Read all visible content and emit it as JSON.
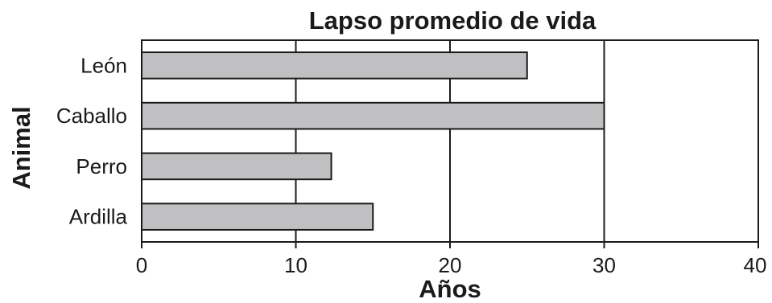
{
  "chart_data": {
    "type": "bar",
    "orientation": "horizontal",
    "title": "Lapso promedio de vida",
    "xlabel": "Años",
    "ylabel": "Animal",
    "categories": [
      "León",
      "Caballo",
      "Perro",
      "Ardilla"
    ],
    "values": [
      25,
      30,
      12.3,
      15
    ],
    "xlim": [
      0,
      40
    ],
    "xticks": [
      "0",
      "10",
      "20",
      "30",
      "40"
    ],
    "grid": "vertical",
    "legend": "none",
    "colors": {
      "bar_fill": "#c0c0c2",
      "bar_stroke": "#1a1a1a",
      "axis": "#1a1a1a"
    }
  }
}
